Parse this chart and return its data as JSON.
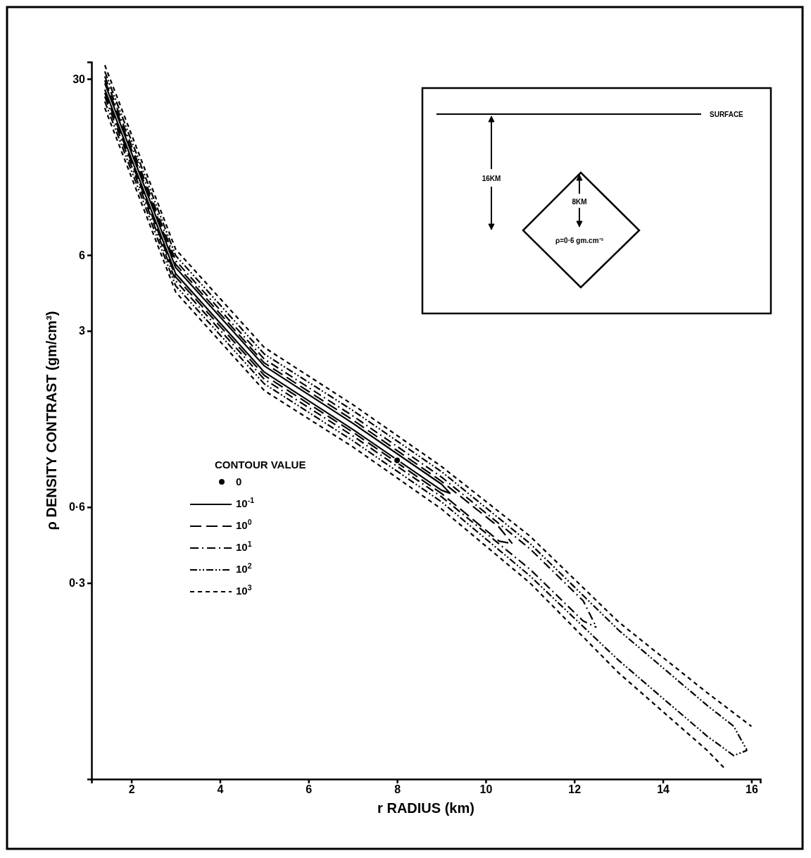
{
  "chart_data": {
    "type": "line",
    "xlabel": "r  RADIUS (km)",
    "ylabel": "ρ  DENSITY CONTRAST (gm/cm³)",
    "legend_title": "CONTOUR VALUE",
    "legend": "left",
    "log": "y",
    "xlim": [
      1.1,
      16.2
    ],
    "xticks": [
      2,
      4,
      6,
      8,
      10,
      12,
      14,
      {
        "value": 16,
        "label": "16"
      }
    ],
    "ylim": [
      0.05,
      35
    ],
    "yticks": [
      30,
      6,
      3,
      {
        "value": 0.6,
        "label": "0·6"
      },
      {
        "value": 0.3,
        "label": "0·3"
      }
    ],
    "annotations": [
      "SURFACE",
      "16KM",
      "8KM",
      "ρ=0·6 gm.cm⁻³"
    ],
    "series": [
      {
        "name": "0",
        "type": "scatter",
        "marker": "circle",
        "color": "#000000",
        "x": [
          8.0
        ],
        "values": [
          0.92
        ]
      },
      {
        "name": "10$^{-1}$",
        "line_style": "solid",
        "color": "#000000",
        "x": [
          1.4,
          3,
          5,
          7,
          9,
          9.2
        ],
        "values": [
          28.8,
          5.35,
          2.18,
          1.29,
          0.74,
          0.68
        ]
      },
      {
        "line_style": "solid",
        "color": "#000000",
        "x": [
          1.4,
          3,
          5,
          7,
          9,
          9.2
        ],
        "values": [
          27.2,
          5.06,
          2.06,
          1.22,
          0.7,
          0.68
        ]
      },
      {
        "name": "10$^{0}$",
        "line_style": "longdash",
        "color": "#000000",
        "x": [
          1.4,
          3,
          5,
          7,
          9,
          10.3,
          10.6
        ],
        "values": [
          29.6,
          5.51,
          2.24,
          1.33,
          0.76,
          0.5,
          0.43
        ]
      },
      {
        "line_style": "longdash",
        "color": "#000000",
        "x": [
          1.4,
          3,
          5,
          7,
          9,
          10.3,
          10.6
        ],
        "values": [
          26.4,
          4.91,
          2.0,
          1.19,
          0.68,
          0.44,
          0.43
        ]
      },
      {
        "name": "10$^{1}$",
        "line_style": "dashdot",
        "color": "#000000",
        "x": [
          1.4,
          3,
          5,
          7,
          9,
          11,
          12.2,
          12.5
        ],
        "values": [
          30.7,
          5.7,
          2.32,
          1.38,
          0.79,
          0.41,
          0.255,
          0.2
        ]
      },
      {
        "line_style": "dashdot",
        "color": "#000000",
        "x": [
          1.4,
          3,
          5,
          7,
          9,
          11,
          12.2,
          12.5
        ],
        "values": [
          25.5,
          4.74,
          1.93,
          1.15,
          0.66,
          0.34,
          0.212,
          0.2
        ]
      },
      {
        "name": "10$^{2}$",
        "line_style": "dashdotdot",
        "color": "#000000",
        "x": [
          1.4,
          3,
          5,
          7,
          9,
          11,
          13,
          15,
          15.6,
          15.9
        ],
        "values": [
          32.1,
          5.97,
          2.43,
          1.45,
          0.83,
          0.43,
          0.195,
          0.098,
          0.081,
          0.065
        ]
      },
      {
        "line_style": "dashdotdot",
        "color": "#000000",
        "x": [
          1.4,
          3,
          5,
          7,
          9,
          11,
          13,
          15,
          15.6,
          15.9
        ],
        "values": [
          24.4,
          4.53,
          1.85,
          1.1,
          0.63,
          0.32,
          0.148,
          0.074,
          0.062,
          0.065
        ]
      },
      {
        "name": "10$^{3}$",
        "line_style": "dashed",
        "color": "#000000",
        "x": [
          1.4,
          3,
          5,
          7,
          9,
          11,
          13,
          15,
          16
        ],
        "values": [
          34.0,
          6.32,
          2.58,
          1.53,
          0.87,
          0.46,
          0.21,
          0.11,
          0.081
        ]
      },
      {
        "line_style": "dashed",
        "color": "#000000",
        "x": [
          1.4,
          3,
          5,
          7,
          9,
          11,
          13,
          15,
          15.4
        ],
        "values": [
          23.0,
          4.28,
          1.74,
          1.04,
          0.59,
          0.3,
          0.132,
          0.065,
          0.055
        ]
      }
    ]
  }
}
